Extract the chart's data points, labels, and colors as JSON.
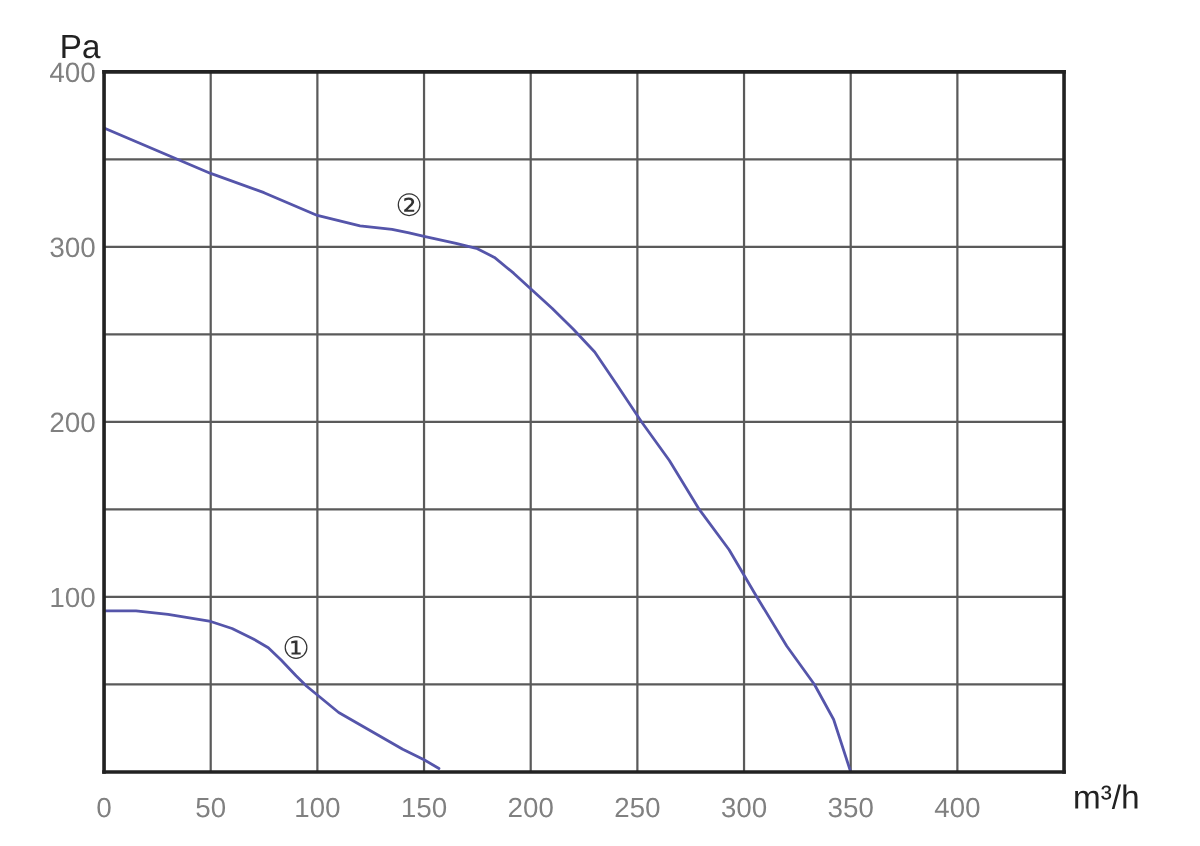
{
  "chart_data": {
    "type": "line",
    "xlabel": "m³/h",
    "ylabel": "Pa",
    "series": [
      {
        "color": "#5555aa",
        "x": [
          0,
          15,
          30,
          50,
          60,
          70,
          77,
          83,
          90,
          95,
          101,
          110,
          120,
          130,
          140,
          150,
          157
        ],
        "values": [
          92,
          92,
          90,
          86,
          82,
          76,
          71,
          64,
          55,
          49,
          43,
          34,
          27,
          20,
          13,
          7,
          2
        ]
      },
      {
        "color": "#5555aa",
        "x": [
          0,
          25,
          50,
          75,
          100,
          110,
          120,
          135,
          143,
          150,
          165,
          175,
          183,
          192,
          201,
          210,
          220,
          230,
          240,
          252,
          265,
          279,
          293,
          306,
          320,
          333,
          342,
          350
        ],
        "values": [
          368,
          355,
          342,
          331,
          318,
          315,
          312,
          310,
          308,
          306,
          302,
          299,
          294,
          285,
          275,
          265,
          253,
          240,
          222,
          200,
          178,
          150,
          127,
          100,
          72,
          50,
          30,
          0
        ]
      }
    ],
    "xlim": [
      0,
      450
    ],
    "ylim": [
      0,
      400
    ],
    "xticks": [
      0,
      50,
      100,
      150,
      200,
      250,
      300,
      350,
      400
    ],
    "yticks": [
      {
        "value": 50,
        "label": null
      },
      100,
      {
        "value": 150,
        "label": null
      },
      200,
      {
        "value": 250,
        "label": null
      },
      300,
      {
        "value": 350,
        "label": null
      },
      400
    ],
    "grid": true,
    "annotations": [
      {
        "text": "①",
        "x": 90,
        "y": 55
      },
      {
        "text": "②",
        "x": 143,
        "y": 308
      }
    ]
  }
}
